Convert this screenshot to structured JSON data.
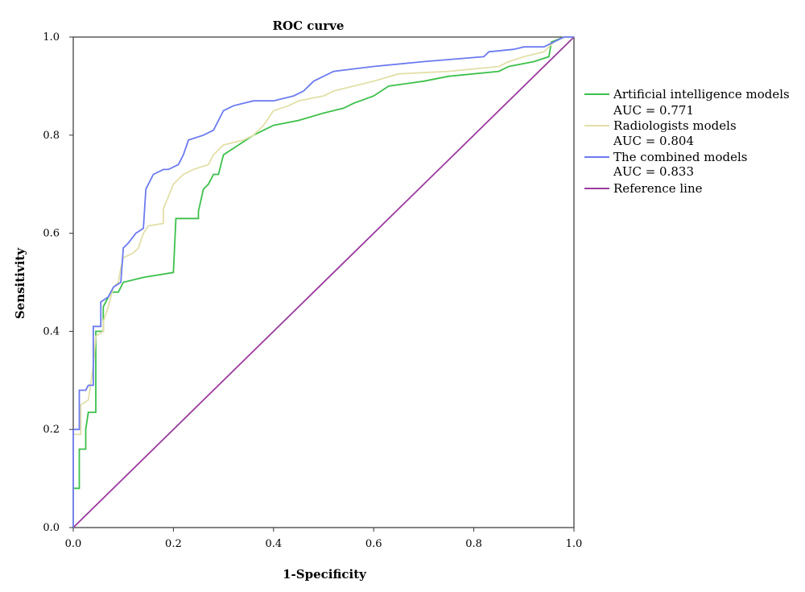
{
  "chart_data": {
    "type": "line",
    "title": "ROC curve",
    "xlabel": "1-Specificity",
    "ylabel": "Sensitivity",
    "xlim": [
      0,
      1
    ],
    "ylim": [
      0,
      1
    ],
    "x_ticks": [
      "0.0",
      "0.2",
      "0.4",
      "0.6",
      "0.8",
      "1.0"
    ],
    "y_ticks": [
      "0.0",
      "0.2",
      "0.4",
      "0.6",
      "0.8",
      "1.0"
    ],
    "grid": false,
    "legend_position": "right",
    "series": [
      {
        "name": "Artificial intelligence models",
        "auc_label": "AUC = 0.771",
        "color": "#3cc04a",
        "points": [
          [
            0,
            0
          ],
          [
            0,
            0.08
          ],
          [
            0.012,
            0.08
          ],
          [
            0.012,
            0.16
          ],
          [
            0.025,
            0.16
          ],
          [
            0.025,
            0.2
          ],
          [
            0.03,
            0.235
          ],
          [
            0.045,
            0.235
          ],
          [
            0.045,
            0.4
          ],
          [
            0.06,
            0.4
          ],
          [
            0.06,
            0.45
          ],
          [
            0.075,
            0.48
          ],
          [
            0.09,
            0.48
          ],
          [
            0.1,
            0.5
          ],
          [
            0.14,
            0.51
          ],
          [
            0.2,
            0.52
          ],
          [
            0.205,
            0.63
          ],
          [
            0.25,
            0.63
          ],
          [
            0.25,
            0.645
          ],
          [
            0.26,
            0.69
          ],
          [
            0.27,
            0.7
          ],
          [
            0.28,
            0.72
          ],
          [
            0.29,
            0.72
          ],
          [
            0.3,
            0.76
          ],
          [
            0.33,
            0.78
          ],
          [
            0.36,
            0.8
          ],
          [
            0.4,
            0.82
          ],
          [
            0.45,
            0.83
          ],
          [
            0.5,
            0.845
          ],
          [
            0.54,
            0.855
          ],
          [
            0.56,
            0.865
          ],
          [
            0.6,
            0.88
          ],
          [
            0.63,
            0.9
          ],
          [
            0.7,
            0.91
          ],
          [
            0.75,
            0.92
          ],
          [
            0.85,
            0.93
          ],
          [
            0.87,
            0.94
          ],
          [
            0.92,
            0.95
          ],
          [
            0.95,
            0.96
          ],
          [
            0.955,
            0.99
          ],
          [
            0.98,
            1
          ],
          [
            1,
            1
          ]
        ]
      },
      {
        "name": "Radiologists models",
        "auc_label": "AUC = 0.804",
        "color": "#e3dfa8",
        "points": [
          [
            0,
            0
          ],
          [
            0,
            0.19
          ],
          [
            0.015,
            0.19
          ],
          [
            0.015,
            0.25
          ],
          [
            0.03,
            0.26
          ],
          [
            0.04,
            0.33
          ],
          [
            0.045,
            0.39
          ],
          [
            0.06,
            0.4
          ],
          [
            0.06,
            0.42
          ],
          [
            0.07,
            0.45
          ],
          [
            0.08,
            0.49
          ],
          [
            0.09,
            0.5
          ],
          [
            0.095,
            0.53
          ],
          [
            0.1,
            0.55
          ],
          [
            0.12,
            0.56
          ],
          [
            0.13,
            0.57
          ],
          [
            0.14,
            0.6
          ],
          [
            0.15,
            0.615
          ],
          [
            0.18,
            0.62
          ],
          [
            0.18,
            0.65
          ],
          [
            0.2,
            0.7
          ],
          [
            0.22,
            0.72
          ],
          [
            0.24,
            0.73
          ],
          [
            0.27,
            0.74
          ],
          [
            0.28,
            0.76
          ],
          [
            0.3,
            0.78
          ],
          [
            0.34,
            0.79
          ],
          [
            0.36,
            0.8
          ],
          [
            0.38,
            0.82
          ],
          [
            0.4,
            0.85
          ],
          [
            0.43,
            0.86
          ],
          [
            0.45,
            0.87
          ],
          [
            0.5,
            0.88
          ],
          [
            0.52,
            0.89
          ],
          [
            0.56,
            0.9
          ],
          [
            0.6,
            0.91
          ],
          [
            0.65,
            0.925
          ],
          [
            0.75,
            0.93
          ],
          [
            0.85,
            0.94
          ],
          [
            0.87,
            0.95
          ],
          [
            0.9,
            0.96
          ],
          [
            0.94,
            0.97
          ],
          [
            0.96,
            0.99
          ],
          [
            0.98,
            1
          ],
          [
            1,
            1
          ]
        ]
      },
      {
        "name": "The combined models",
        "auc_label": "AUC = 0.833",
        "color": "#6b7bef",
        "points": [
          [
            0,
            0
          ],
          [
            0,
            0.2
          ],
          [
            0.012,
            0.2
          ],
          [
            0.012,
            0.28
          ],
          [
            0.025,
            0.28
          ],
          [
            0.03,
            0.29
          ],
          [
            0.04,
            0.29
          ],
          [
            0.04,
            0.41
          ],
          [
            0.055,
            0.41
          ],
          [
            0.055,
            0.46
          ],
          [
            0.07,
            0.47
          ],
          [
            0.08,
            0.49
          ],
          [
            0.095,
            0.5
          ],
          [
            0.1,
            0.57
          ],
          [
            0.11,
            0.58
          ],
          [
            0.125,
            0.6
          ],
          [
            0.14,
            0.61
          ],
          [
            0.145,
            0.69
          ],
          [
            0.16,
            0.72
          ],
          [
            0.18,
            0.73
          ],
          [
            0.19,
            0.73
          ],
          [
            0.21,
            0.74
          ],
          [
            0.22,
            0.76
          ],
          [
            0.23,
            0.79
          ],
          [
            0.26,
            0.8
          ],
          [
            0.28,
            0.81
          ],
          [
            0.3,
            0.85
          ],
          [
            0.32,
            0.86
          ],
          [
            0.36,
            0.87
          ],
          [
            0.4,
            0.87
          ],
          [
            0.44,
            0.88
          ],
          [
            0.46,
            0.89
          ],
          [
            0.48,
            0.91
          ],
          [
            0.5,
            0.92
          ],
          [
            0.52,
            0.93
          ],
          [
            0.6,
            0.94
          ],
          [
            0.7,
            0.95
          ],
          [
            0.82,
            0.96
          ],
          [
            0.83,
            0.97
          ],
          [
            0.88,
            0.975
          ],
          [
            0.9,
            0.98
          ],
          [
            0.94,
            0.98
          ],
          [
            0.96,
            0.99
          ],
          [
            0.98,
            1
          ],
          [
            1,
            1
          ]
        ]
      },
      {
        "name": "Reference line",
        "color": "#9b3a9e",
        "points": [
          [
            0,
            0
          ],
          [
            1,
            1
          ]
        ]
      }
    ]
  }
}
